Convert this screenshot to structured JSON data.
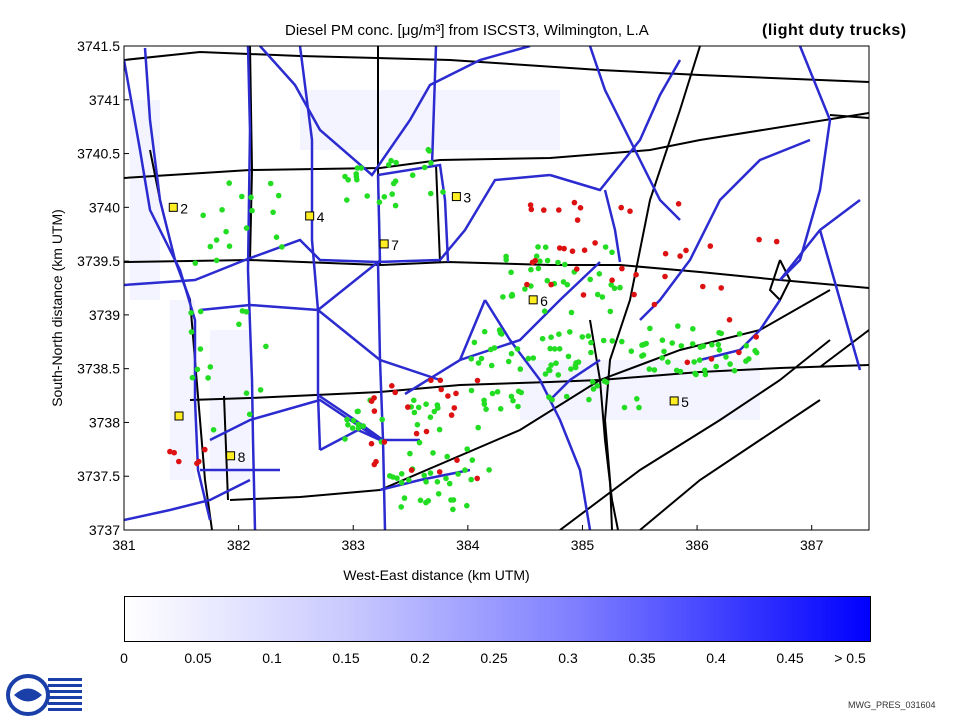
{
  "title": "Diesel PM conc. [μg/m³] from ISCST3, Wilmington, L.A",
  "subtitle": "(light duty trucks)",
  "map": {
    "xlabel": "West-East distance (km UTM)",
    "ylabel": "South-North distance (km UTM)",
    "x_range": [
      381,
      387.5
    ],
    "y_range": [
      3737,
      3741.5
    ],
    "x_ticks": [
      "381",
      "382",
      "383",
      "384",
      "385",
      "386",
      "387"
    ],
    "y_ticks": [
      "3737",
      "3737.5",
      "3738",
      "3738.5",
      "3739",
      "3739.5",
      "3740",
      "3740.5",
      "3741",
      "3741.5"
    ],
    "receptors": [
      {
        "label": "2",
        "x": 381.43,
        "y": 3740.0
      },
      {
        "label": "4",
        "x": 382.62,
        "y": 3739.92
      },
      {
        "label": "3",
        "x": 383.9,
        "y": 3740.1
      },
      {
        "label": "7",
        "x": 383.27,
        "y": 3739.66
      },
      {
        "label": "6",
        "x": 384.57,
        "y": 3739.14
      },
      {
        "label": "5",
        "x": 385.8,
        "y": 3738.2
      },
      {
        "label": "",
        "x": 381.48,
        "y": 3738.06
      },
      {
        "label": "8",
        "x": 381.93,
        "y": 3737.69
      }
    ],
    "colors": {
      "freeway": "#2b2bd0",
      "road": "#000000",
      "green_dot": "#22dd22",
      "red_dot": "#dd1111",
      "receptor": "#ffee22"
    }
  },
  "colorbar": {
    "ticks": [
      "0",
      "0.05",
      "0.1",
      "0.15",
      "0.2",
      "0.25",
      "0.3",
      "0.35",
      "0.4",
      "0.45",
      "> 0.5"
    ]
  },
  "footer": {
    "code": "MWG_PRES_031604"
  }
}
